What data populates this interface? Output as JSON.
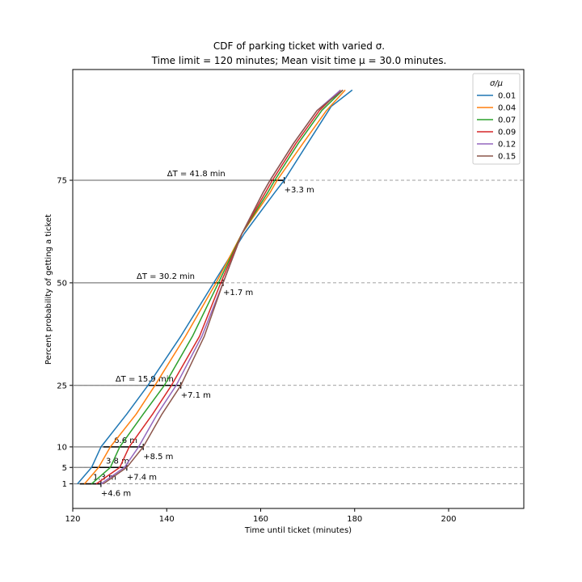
{
  "chart_data": {
    "type": "line",
    "title_line1": "CDF of parking ticket with varied σ.",
    "title_line2": "Time limit = 120 minutes; Mean visit time μ = 30.0 minutes.",
    "xlabel": "Time until ticket (minutes)",
    "ylabel": "Percent probability of getting a ticket",
    "xlim": [
      120,
      216
    ],
    "ylim": [
      -5,
      102
    ],
    "xticks": [
      120,
      140,
      160,
      180,
      200
    ],
    "yticks": [
      1,
      5,
      10,
      25,
      50,
      75
    ],
    "grid": "dashed horizontal at y ticks",
    "legend": {
      "title": "σ/μ",
      "placement": "top-right"
    },
    "series": [
      {
        "name": "0.01",
        "color": "#1f77b4",
        "points": [
          [
            121,
            1
          ],
          [
            124,
            5
          ],
          [
            126,
            10
          ],
          [
            131.5,
            18
          ],
          [
            136,
            25
          ],
          [
            143,
            37
          ],
          [
            150,
            50
          ],
          [
            156.5,
            62
          ],
          [
            163,
            72
          ],
          [
            165,
            75
          ],
          [
            170,
            84
          ],
          [
            175,
            93
          ],
          [
            179.5,
            97
          ]
        ]
      },
      {
        "name": "0.04",
        "color": "#ff7f0e",
        "points": [
          [
            122.5,
            1
          ],
          [
            125.5,
            5
          ],
          [
            128,
            10
          ],
          [
            133.5,
            18
          ],
          [
            137.5,
            25
          ],
          [
            144,
            37
          ],
          [
            150.5,
            50
          ],
          [
            156,
            62
          ],
          [
            162,
            72
          ],
          [
            163.5,
            75
          ],
          [
            169,
            84
          ],
          [
            174,
            92
          ],
          [
            178,
            97
          ]
        ]
      },
      {
        "name": "0.07",
        "color": "#2ca02c",
        "points": [
          [
            124,
            1
          ],
          [
            128,
            5
          ],
          [
            130,
            10
          ],
          [
            135,
            18
          ],
          [
            139.5,
            25
          ],
          [
            145.5,
            37
          ],
          [
            151,
            50
          ],
          [
            156,
            62
          ],
          [
            161.5,
            72
          ],
          [
            163,
            75
          ],
          [
            168,
            84
          ],
          [
            173,
            92
          ],
          [
            177.5,
            97
          ]
        ]
      },
      {
        "name": "0.09",
        "color": "#d62728",
        "points": [
          [
            125,
            1
          ],
          [
            130,
            5
          ],
          [
            132,
            10
          ],
          [
            137,
            18
          ],
          [
            141,
            25
          ],
          [
            147,
            37
          ],
          [
            151.5,
            50
          ],
          [
            156,
            62
          ],
          [
            161,
            72
          ],
          [
            162.5,
            75
          ],
          [
            167.5,
            84
          ],
          [
            172.5,
            92
          ],
          [
            177,
            97
          ]
        ]
      },
      {
        "name": "0.12",
        "color": "#9467bd",
        "points": [
          [
            126,
            1
          ],
          [
            131,
            5
          ],
          [
            134,
            10
          ],
          [
            138,
            18
          ],
          [
            142,
            25
          ],
          [
            147.5,
            37
          ],
          [
            152,
            50
          ],
          [
            156,
            62
          ],
          [
            160.5,
            72
          ],
          [
            162,
            75
          ],
          [
            167,
            84
          ],
          [
            172,
            92
          ],
          [
            177,
            97
          ]
        ]
      },
      {
        "name": "0.15",
        "color": "#8c564b",
        "points": [
          [
            126.5,
            1
          ],
          [
            131.5,
            5
          ],
          [
            135,
            10
          ],
          [
            139,
            18
          ],
          [
            143,
            25
          ],
          [
            148,
            37
          ],
          [
            152,
            50
          ],
          [
            156,
            62
          ],
          [
            160.5,
            72
          ],
          [
            162,
            75
          ],
          [
            167,
            84
          ],
          [
            172,
            92
          ],
          [
            177.5,
            97
          ]
        ]
      }
    ],
    "annotations": [
      {
        "y": 75,
        "x_start": 120,
        "x_end": 165,
        "bar_start": 162,
        "width_label": "ΔT = 41.8 min",
        "delta_label": "+3.3 m"
      },
      {
        "y": 50,
        "x_start": 120,
        "x_end": 152,
        "bar_start": 150,
        "width_label": "ΔT = 30.2 min",
        "delta_label": "+1.7 m"
      },
      {
        "y": 25,
        "x_start": 120,
        "x_end": 143,
        "bar_start": 136,
        "width_label": "ΔT = 15.9 min",
        "delta_label": "+7.1 m"
      },
      {
        "y": 10,
        "x_start": 120,
        "x_end": 135,
        "bar_start": 126.5,
        "width_label": "6.6 m",
        "delta_label": "+8.5 m"
      },
      {
        "y": 5,
        "x_start": 120,
        "x_end": 131.5,
        "bar_start": 124,
        "width_label": "3.8 m",
        "delta_label": "+7.4 m"
      },
      {
        "y": 1,
        "x_start": 120,
        "x_end": 126,
        "bar_start": 121.5,
        "width_label": "1.3 m",
        "delta_label": "+4.6 m"
      }
    ]
  }
}
